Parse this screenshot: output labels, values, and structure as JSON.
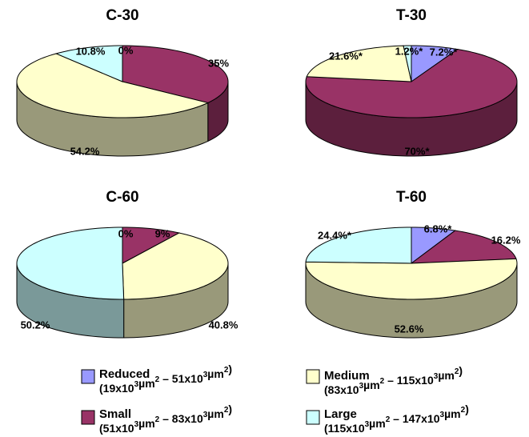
{
  "legend": {
    "items": [
      {
        "key": "reduced",
        "name": "Reduced",
        "range": "(19x10³µm² – 51x10³µm²)"
      },
      {
        "key": "small",
        "name": "Small",
        "range": "(51x10³µm² – 83x10³µm²)"
      },
      {
        "key": "medium",
        "name": "Medium",
        "range": "(83x10³µm² – 115x10³µm²)"
      },
      {
        "key": "large",
        "name": "Large",
        "range": "(115x10³µm² – 147x10³µm²)"
      }
    ]
  },
  "colors": {
    "reduced": {
      "top": "#9999ff",
      "side": "#5c5c99"
    },
    "small": {
      "top": "#993366",
      "side": "#5c1f3d"
    },
    "medium": {
      "top": "#ffffcc",
      "side": "#99997a"
    },
    "large": {
      "top": "#ccffff",
      "side": "#7a9999"
    },
    "outline": "#000000"
  },
  "chart_data": [
    {
      "type": "pie",
      "title": "C-30",
      "slices": [
        {
          "category": "reduced",
          "value": 0,
          "label": "0%"
        },
        {
          "category": "small",
          "value": 35,
          "label": "35%"
        },
        {
          "category": "medium",
          "value": 54.2,
          "label": "54.2%"
        },
        {
          "category": "large",
          "value": 10.8,
          "label": "10.8%"
        }
      ]
    },
    {
      "type": "pie",
      "title": "T-30",
      "slices": [
        {
          "category": "reduced",
          "value": 7.2,
          "label": "7.2%*"
        },
        {
          "category": "small",
          "value": 70,
          "label": "70%*"
        },
        {
          "category": "medium",
          "value": 21.6,
          "label": "21.6%*"
        },
        {
          "category": "large",
          "value": 1.2,
          "label": "1.2%*"
        }
      ]
    },
    {
      "type": "pie",
      "title": "C-60",
      "slices": [
        {
          "category": "reduced",
          "value": 0,
          "label": "0%"
        },
        {
          "category": "small",
          "value": 9,
          "label": "9%"
        },
        {
          "category": "medium",
          "value": 40.8,
          "label": "40.8%"
        },
        {
          "category": "large",
          "value": 50.2,
          "label": "50.2%"
        }
      ]
    },
    {
      "type": "pie",
      "title": "T-60",
      "slices": [
        {
          "category": "reduced",
          "value": 6.8,
          "label": "6.8%*"
        },
        {
          "category": "small",
          "value": 16.2,
          "label": "16.2%"
        },
        {
          "category": "medium",
          "value": 52.6,
          "label": "52.6%"
        },
        {
          "category": "large",
          "value": 24.4,
          "label": "24.4%*"
        }
      ]
    }
  ]
}
